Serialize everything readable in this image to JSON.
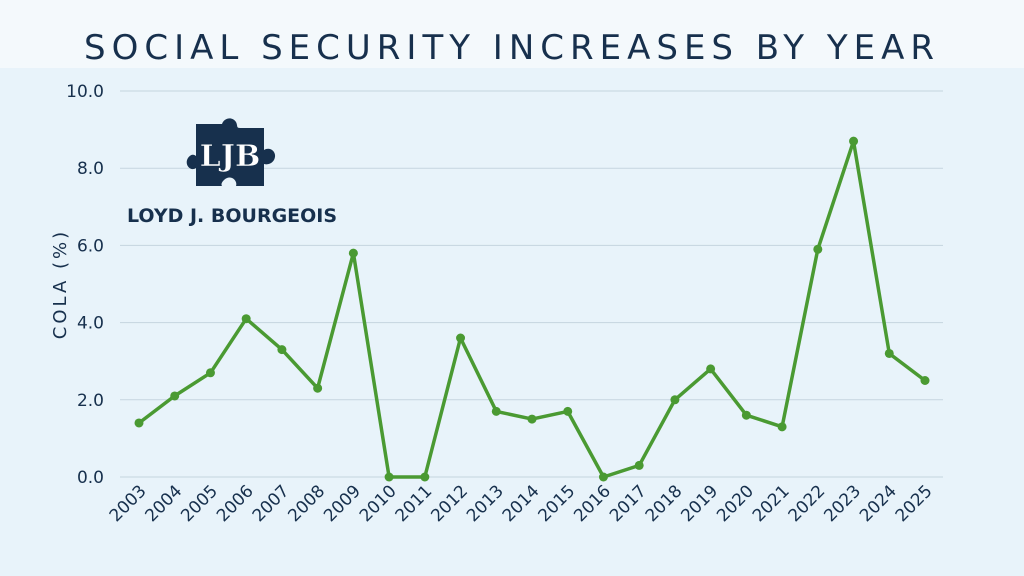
{
  "colors": {
    "line": "#4a9a32",
    "text": "#17304d",
    "grid": "#c5d5df",
    "background": "#e8f3fa"
  },
  "logo": {
    "letters": "LJB",
    "name": "LOYD J. BOURGEOIS",
    "icon": "puzzle-piece-icon"
  },
  "chart_data": {
    "type": "line",
    "title": "SOCIAL SECURITY INCREASES BY YEAR",
    "xlabel": "",
    "ylabel": "COLA (%)",
    "ylim": [
      0,
      10
    ],
    "yticks": [
      "0.0",
      "2.0",
      "4.0",
      "6.0",
      "8.0",
      "10.0"
    ],
    "grid": true,
    "categories": [
      "2003",
      "2004",
      "2005",
      "2006",
      "2007",
      "2008",
      "2009",
      "2010",
      "2011",
      "2012",
      "2013",
      "2014",
      "2015",
      "2016",
      "2017",
      "2018",
      "2019",
      "2020",
      "2021",
      "2022",
      "2023",
      "2024",
      "2025"
    ],
    "values": [
      1.4,
      2.1,
      2.7,
      4.1,
      3.3,
      2.3,
      5.8,
      0.0,
      0.0,
      3.6,
      1.7,
      1.5,
      1.7,
      0.0,
      0.3,
      2.0,
      2.8,
      1.6,
      1.3,
      5.9,
      8.7,
      3.2,
      2.5
    ]
  }
}
